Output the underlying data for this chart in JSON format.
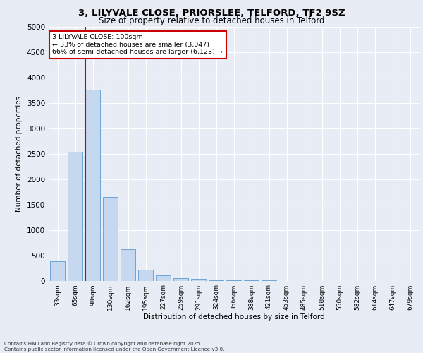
{
  "title_line1": "3, LILYVALE CLOSE, PRIORSLEE, TELFORD, TF2 9SZ",
  "title_line2": "Size of property relative to detached houses in Telford",
  "xlabel": "Distribution of detached houses by size in Telford",
  "ylabel": "Number of detached properties",
  "categories": [
    "33sqm",
    "65sqm",
    "98sqm",
    "130sqm",
    "162sqm",
    "195sqm",
    "227sqm",
    "259sqm",
    "291sqm",
    "324sqm",
    "356sqm",
    "388sqm",
    "421sqm",
    "453sqm",
    "485sqm",
    "518sqm",
    "550sqm",
    "582sqm",
    "614sqm",
    "647sqm",
    "679sqm"
  ],
  "values": [
    380,
    2530,
    3760,
    1650,
    620,
    220,
    100,
    55,
    30,
    10,
    5,
    2,
    1,
    0,
    0,
    0,
    0,
    0,
    0,
    0,
    0
  ],
  "bar_color": "#c5d8f0",
  "bar_edgecolor": "#5b9bd5",
  "redline_index": 2,
  "redline_label": "3 LILYVALE CLOSE: 100sqm",
  "annotation_smaller": "← 33% of detached houses are smaller (3,047)",
  "annotation_larger": "66% of semi-detached houses are larger (6,123) →",
  "annotation_box_color": "#cc0000",
  "ylim": [
    0,
    5000
  ],
  "yticks": [
    0,
    500,
    1000,
    1500,
    2000,
    2500,
    3000,
    3500,
    4000,
    4500,
    5000
  ],
  "footnote1": "Contains HM Land Registry data © Crown copyright and database right 2025.",
  "footnote2": "Contains public sector information licensed under the Open Government Licence v3.0.",
  "bg_color": "#e8edf5",
  "plot_bg_color": "#e8edf5"
}
